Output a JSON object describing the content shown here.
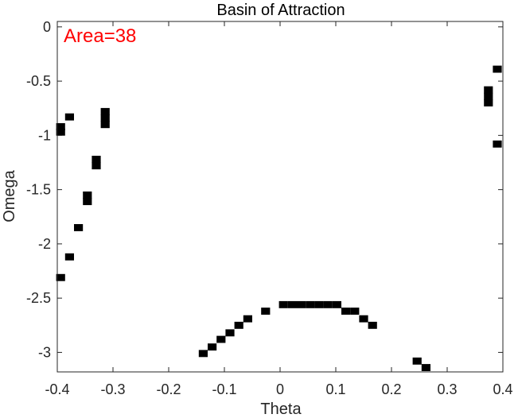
{
  "chart_data": {
    "type": "scatter",
    "title": "Basin of Attraction",
    "xlabel": "Theta",
    "ylabel": "Omega",
    "xlim": [
      -0.4,
      0.4
    ],
    "ylim": [
      -3.18,
      0.05
    ],
    "x_ticks": [
      -0.4,
      -0.3,
      -0.2,
      -0.1,
      0,
      0.1,
      0.2,
      0.3,
      0.4
    ],
    "x_tick_labels": [
      "-0.4",
      "-0.3",
      "-0.2",
      "-0.1",
      "0",
      "0.1",
      "0.2",
      "0.3",
      "0.4"
    ],
    "y_ticks": [
      0,
      -0.5,
      -1,
      -1.5,
      -2,
      -2.5,
      -3
    ],
    "y_tick_labels": [
      "0",
      "-0.5",
      "-1",
      "-1.5",
      "-2",
      "-2.5",
      "-3"
    ],
    "grid": false,
    "annotation": {
      "text": "Area=38",
      "color": "#ff0000",
      "placement": "top-left"
    },
    "marker_color": "#000000",
    "cell_size": {
      "dtheta": 0.016,
      "domega": 0.065
    },
    "points": [
      [
        -0.394,
        -0.92
      ],
      [
        -0.394,
        -0.97
      ],
      [
        -0.394,
        -2.31
      ],
      [
        -0.378,
        -0.83
      ],
      [
        -0.378,
        -2.12
      ],
      [
        -0.362,
        -1.85
      ],
      [
        -0.346,
        -1.55
      ],
      [
        -0.346,
        -1.61
      ],
      [
        -0.33,
        -1.22
      ],
      [
        -0.33,
        -1.28
      ],
      [
        -0.314,
        -0.78
      ],
      [
        -0.314,
        -0.84
      ],
      [
        -0.314,
        -0.9
      ],
      [
        -0.138,
        -3.01
      ],
      [
        -0.122,
        -2.95
      ],
      [
        -0.106,
        -2.88
      ],
      [
        -0.09,
        -2.82
      ],
      [
        -0.074,
        -2.75
      ],
      [
        -0.058,
        -2.69
      ],
      [
        -0.026,
        -2.62
      ],
      [
        0.006,
        -2.56
      ],
      [
        0.022,
        -2.56
      ],
      [
        0.038,
        -2.56
      ],
      [
        0.054,
        -2.56
      ],
      [
        0.07,
        -2.56
      ],
      [
        0.086,
        -2.56
      ],
      [
        0.102,
        -2.56
      ],
      [
        0.118,
        -2.62
      ],
      [
        0.134,
        -2.62
      ],
      [
        0.15,
        -2.69
      ],
      [
        0.166,
        -2.75
      ],
      [
        0.246,
        -3.08
      ],
      [
        0.262,
        -3.14
      ],
      [
        0.374,
        -0.58
      ],
      [
        0.374,
        -0.64
      ],
      [
        0.374,
        -0.7
      ],
      [
        0.39,
        -0.39
      ],
      [
        0.39,
        -1.08
      ]
    ]
  }
}
